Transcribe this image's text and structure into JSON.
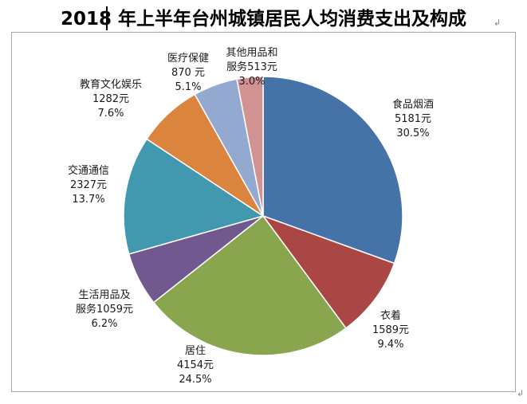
{
  "chart_data": {
    "type": "pie",
    "title": "2018 年上半年台州城镇居民人均消费支出及构成",
    "slices": [
      {
        "name": "食品烟酒",
        "value": 5181,
        "value_label": "5181元",
        "percent": 30.5,
        "percent_label": "30.5%",
        "color": "#4572a7"
      },
      {
        "name": "衣着",
        "value": 1589,
        "value_label": "1589元",
        "percent": 9.4,
        "percent_label": "9.4%",
        "color": "#aa4643"
      },
      {
        "name": "居住",
        "value": 4154,
        "value_label": "4154元",
        "percent": 24.5,
        "percent_label": "24.5%",
        "color": "#89a54e"
      },
      {
        "name": "生活用品及服务",
        "value": 1059,
        "value_label": "服务1059元",
        "line1": "生活用品及",
        "percent": 6.2,
        "percent_label": "6.2%",
        "color": "#71588f"
      },
      {
        "name": "交通通信",
        "value": 2327,
        "value_label": "2327元",
        "percent": 13.7,
        "percent_label": "13.7%",
        "color": "#4198af"
      },
      {
        "name": "教育文化娱乐",
        "value": 1282,
        "value_label": "1282元",
        "percent": 7.6,
        "percent_label": "7.6%",
        "color": "#db843d"
      },
      {
        "name": "医疗保健",
        "value": 870,
        "value_label": "870 元",
        "percent": 5.1,
        "percent_label": "5.1%",
        "color": "#93a9cf"
      },
      {
        "name": "其他用品和服务",
        "value": 513,
        "value_label": "服务513元",
        "line1": "其他用品和",
        "percent": 3.0,
        "percent_label": "3.0%",
        "color": "#d09392"
      }
    ],
    "legend": "none"
  },
  "marks": {
    "paragraph": "↲"
  }
}
